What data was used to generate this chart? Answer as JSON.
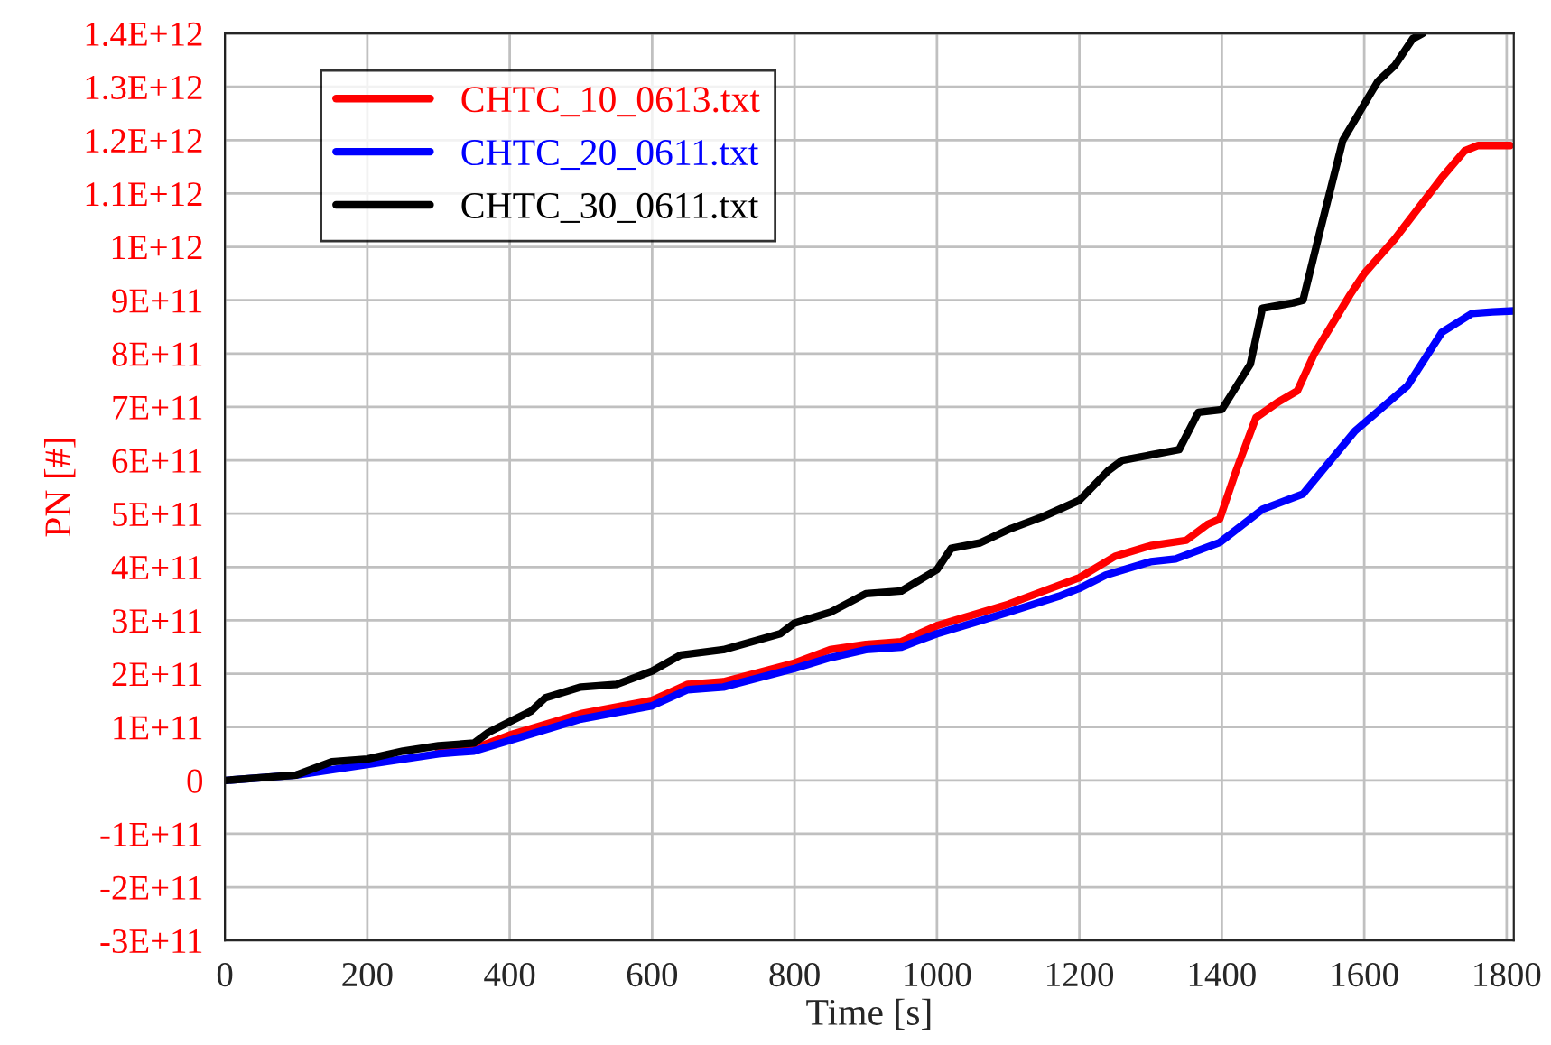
{
  "chart_data": {
    "type": "line",
    "xlabel": "Time [s]",
    "ylabel": "PN [#]",
    "xlim": [
      0,
      1810
    ],
    "xticks": [
      0,
      200,
      400,
      600,
      800,
      1000,
      1200,
      1400,
      1600,
      1800
    ],
    "ylim": [
      -300000000000.0,
      1400000000000.0
    ],
    "yticks": [
      {
        "value": -300000000000.0,
        "label": "-3E+11"
      },
      {
        "value": -200000000000.0,
        "label": "-2E+11"
      },
      {
        "value": -100000000000.0,
        "label": "-1E+11"
      },
      0,
      {
        "value": 100000000000.0,
        "label": "1E+11"
      },
      {
        "value": 200000000000.0,
        "label": "2E+11"
      },
      {
        "value": 300000000000.0,
        "label": "3E+11"
      },
      {
        "value": 400000000000.0,
        "label": "4E+11"
      },
      {
        "value": 500000000000.0,
        "label": "5E+11"
      },
      {
        "value": 600000000000.0,
        "label": "6E+11"
      },
      {
        "value": 700000000000.0,
        "label": "7E+11"
      },
      {
        "value": 800000000000.0,
        "label": "8E+11"
      },
      {
        "value": 900000000000.0,
        "label": "9E+11"
      },
      {
        "value": 1000000000000.0,
        "label": "1E+12"
      },
      {
        "value": 1100000000000.0,
        "label": "1.1E+12"
      },
      {
        "value": 1200000000000.0,
        "label": "1.2E+12"
      },
      {
        "value": 1300000000000.0,
        "label": "1.3E+12"
      },
      {
        "value": 1400000000000.0,
        "label": "1.4E+12"
      }
    ],
    "grid": true,
    "legend": "top left",
    "marker": "none",
    "line_style": "solid",
    "series": [
      {
        "name": "CHTC_10_0613.txt",
        "color": "#ff0000",
        "x": [
          300,
          350,
          400,
          500,
          600,
          650,
          700,
          800,
          850,
          900,
          950,
          1000,
          1050,
          1100,
          1150,
          1200,
          1250,
          1300,
          1350,
          1380,
          1397,
          1420,
          1448,
          1480,
          1506,
          1530,
          1580,
          1600,
          1643,
          1709,
          1741,
          1760,
          1805
        ],
        "values": [
          55000000000.0,
          60000000000.0,
          85000000000.0,
          125000000000.0,
          150000000000.0,
          180000000000.0,
          185000000000.0,
          220000000000.0,
          245000000000.0,
          255000000000.0,
          260000000000.0,
          290000000000.0,
          310000000000.0,
          330000000000.0,
          355000000000.0,
          380000000000.0,
          420000000000.0,
          440000000000.0,
          450000000000.0,
          480000000000.0,
          490000000000.0,
          580000000000.0,
          680000000000.0,
          710000000000.0,
          730000000000.0,
          800000000000.0,
          910000000000.0,
          950000000000.0,
          1015000000000.0,
          1130000000000.0,
          1180000000000.0,
          1190000000000.0,
          1190000000000.0
        ]
      },
      {
        "name": "CHTC_20_0611.txt",
        "color": "#0000ff",
        "x": [
          0,
          100,
          200,
          300,
          350,
          400,
          500,
          600,
          650,
          700,
          800,
          850,
          900,
          950,
          1000,
          1050,
          1100,
          1171,
          1200,
          1237,
          1300,
          1335,
          1397,
          1457,
          1514,
          1587,
          1661,
          1709,
          1751,
          1780,
          1810
        ],
        "values": [
          0,
          10000000000.0,
          30000000000.0,
          50000000000.0,
          55000000000.0,
          75000000000.0,
          115000000000.0,
          140000000000.0,
          170000000000.0,
          175000000000.0,
          210000000000.0,
          230000000000.0,
          245000000000.0,
          250000000000.0,
          275000000000.0,
          295000000000.0,
          315000000000.0,
          345000000000.0,
          360000000000.0,
          385000000000.0,
          410000000000.0,
          415000000000.0,
          446000000000.0,
          508000000000.0,
          537000000000.0,
          655000000000.0,
          740000000000.0,
          840000000000.0,
          875000000000.0,
          878000000000.0,
          880000000000.0
        ]
      },
      {
        "name": "CHTC_30_0611.txt",
        "color": "#000000",
        "x": [
          0,
          100,
          150,
          200,
          250,
          300,
          350,
          370,
          400,
          430,
          450,
          500,
          550,
          600,
          640,
          700,
          780,
          800,
          850,
          900,
          950,
          1000,
          1020,
          1060,
          1100,
          1150,
          1200,
          1240,
          1260,
          1300,
          1340,
          1367,
          1400,
          1440,
          1457,
          1500,
          1514,
          1538,
          1570,
          1619,
          1643,
          1668,
          1682
        ],
        "values": [
          0,
          10000000000.0,
          35000000000.0,
          40000000000.0,
          55000000000.0,
          65000000000.0,
          70000000000.0,
          90000000000.0,
          110000000000.0,
          130000000000.0,
          155000000000.0,
          175000000000.0,
          180000000000.0,
          205000000000.0,
          235000000000.0,
          245000000000.0,
          275000000000.0,
          295000000000.0,
          315000000000.0,
          350000000000.0,
          355000000000.0,
          395000000000.0,
          435000000000.0,
          445000000000.0,
          470000000000.0,
          495000000000.0,
          525000000000.0,
          580000000000.0,
          600000000000.0,
          610000000000.0,
          620000000000.0,
          690000000000.0,
          695000000000.0,
          780000000000.0,
          885000000000.0,
          895000000000.0,
          900000000000.0,
          1030000000000.0,
          1200000000000.0,
          1310000000000.0,
          1340000000000.0,
          1390000000000.0,
          1400000000000.0
        ]
      }
    ]
  }
}
